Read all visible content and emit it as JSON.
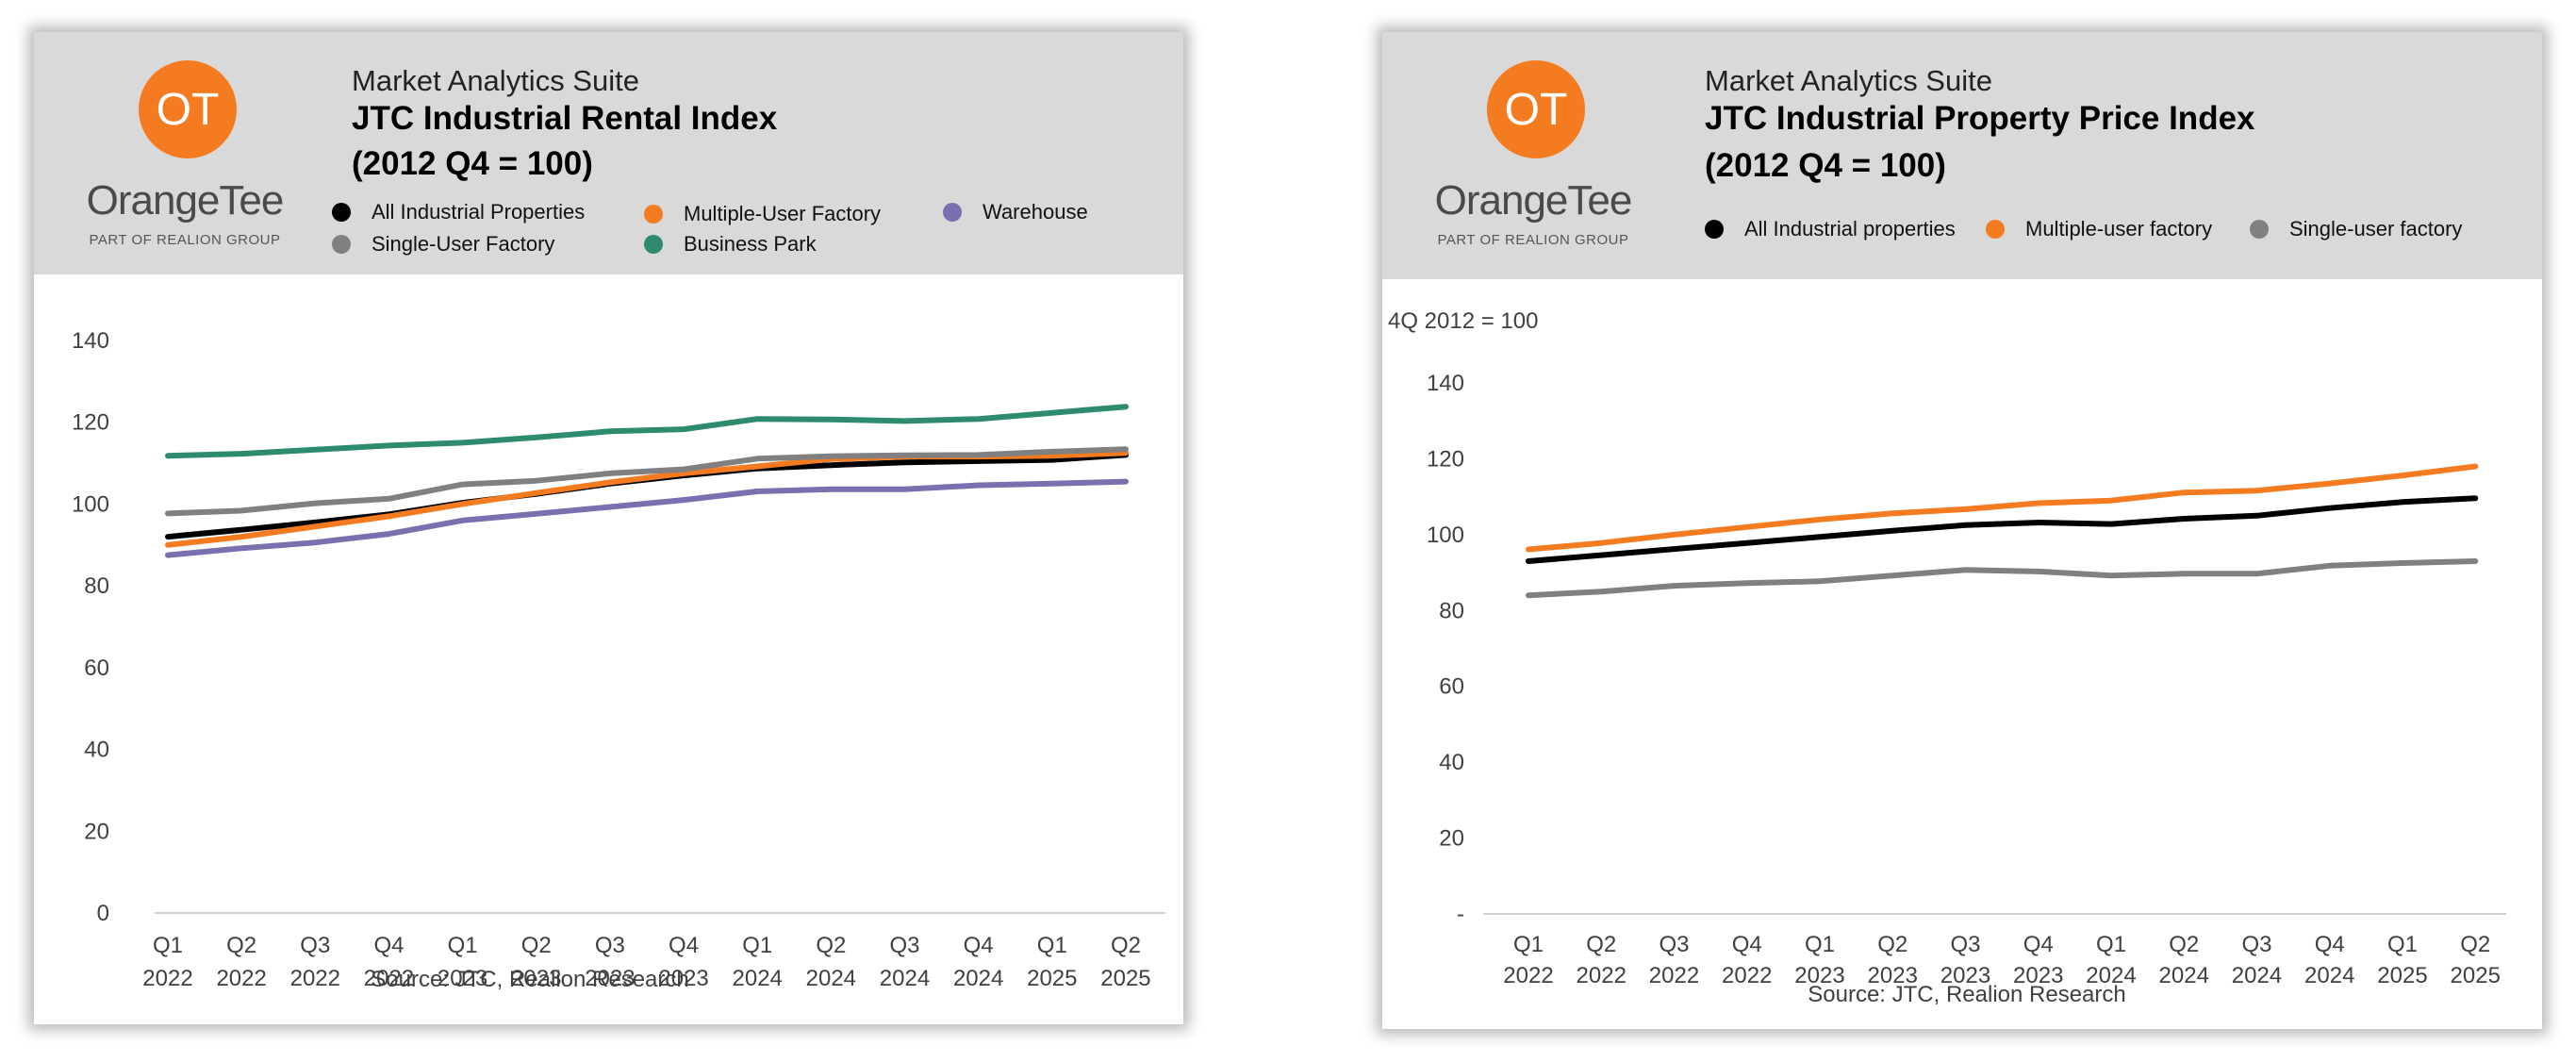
{
  "panels": [
    {
      "logo": {
        "monogram": "OT",
        "wordmark": "OrangeTee",
        "tagline": "PART OF REALION GROUP",
        "color": "#f47b20"
      },
      "suite": "Market Analytics Suite",
      "title_line1": "JTC Industrial Rental Index",
      "title_line2": "(2012 Q4 = 100)",
      "source": "Source: JTC, Realion Research"
    },
    {
      "logo": {
        "monogram": "OT",
        "wordmark": "OrangeTee",
        "tagline": "PART OF REALION GROUP",
        "color": "#f47b20"
      },
      "suite": "Market Analytics Suite",
      "title_line1": "JTC Industrial Property Price Index",
      "title_line2": "(2012 Q4 = 100)",
      "unit_note": "4Q 2012 = 100",
      "source": "Source: JTC, Realion Research"
    }
  ],
  "chart_data": [
    {
      "type": "line",
      "title": "JTC Industrial Rental Index (2012 Q4 = 100)",
      "categories": [
        [
          "Q1",
          "2022"
        ],
        [
          "Q2",
          "2022"
        ],
        [
          "Q3",
          "2022"
        ],
        [
          "Q4",
          "2022"
        ],
        [
          "Q1",
          "2023"
        ],
        [
          "Q2",
          "2023"
        ],
        [
          "Q3",
          "2023"
        ],
        [
          "Q4",
          "2023"
        ],
        [
          "Q1",
          "2024"
        ],
        [
          "Q2",
          "2024"
        ],
        [
          "Q3",
          "2024"
        ],
        [
          "Q4",
          "2024"
        ],
        [
          "Q1",
          "2025"
        ],
        [
          "Q2",
          "2025"
        ]
      ],
      "ylim": [
        0,
        140
      ],
      "yticks": [
        "0",
        "20",
        "40",
        "60",
        "80",
        "100",
        "120",
        "140"
      ],
      "legend_placement": "top",
      "grid": false,
      "series": [
        {
          "name": "All Industrial Properties",
          "color": "#000000",
          "values": [
            92,
            93.7,
            95.5,
            97.5,
            100.3,
            102.5,
            105,
            107,
            108.7,
            109.5,
            110.2,
            110.5,
            110.8,
            112
          ]
        },
        {
          "name": "Multiple-User Factory",
          "color": "#f47b20",
          "values": [
            90,
            92,
            94.5,
            97,
            100,
            102.7,
            105.3,
            107.5,
            109.2,
            111,
            111.6,
            111.6,
            111.8,
            112.5
          ]
        },
        {
          "name": "Warehouse",
          "color": "#7b6fb0",
          "values": [
            87.5,
            89.2,
            90.6,
            92.7,
            96,
            97.6,
            99.3,
            101,
            103.1,
            103.6,
            103.6,
            104.6,
            105,
            105.5
          ]
        },
        {
          "name": "Single-User Factory",
          "color": "#808080",
          "values": [
            97.7,
            98.4,
            100.2,
            101.3,
            104.8,
            105.7,
            107.5,
            108.5,
            111.1,
            111.7,
            111.9,
            112,
            112.8,
            113.4
          ]
        },
        {
          "name": "Business Park",
          "color": "#2e8b6f",
          "values": [
            111.8,
            112.3,
            113.3,
            114.3,
            115,
            116.3,
            117.8,
            118.3,
            120.8,
            120.7,
            120.3,
            120.8,
            122.3,
            123.8
          ]
        }
      ]
    },
    {
      "type": "line",
      "title": "JTC Industrial Property Price Index (2012 Q4 = 100)",
      "categories": [
        [
          "Q1",
          "2022"
        ],
        [
          "Q2",
          "2022"
        ],
        [
          "Q3",
          "2022"
        ],
        [
          "Q4",
          "2022"
        ],
        [
          "Q1",
          "2023"
        ],
        [
          "Q2",
          "2023"
        ],
        [
          "Q3",
          "2023"
        ],
        [
          "Q4",
          "2023"
        ],
        [
          "Q1",
          "2024"
        ],
        [
          "Q2",
          "2024"
        ],
        [
          "Q3",
          "2024"
        ],
        [
          "Q4",
          "2024"
        ],
        [
          "Q1",
          "2025"
        ],
        [
          "Q2",
          "2025"
        ]
      ],
      "ylim": [
        0,
        140
      ],
      "yticks": [
        "-",
        "20",
        "40",
        "60",
        "80",
        "100",
        "120",
        "140"
      ],
      "legend_placement": "top",
      "grid": false,
      "series": [
        {
          "name": "All Industrial properties",
          "color": "#000000",
          "values": [
            93,
            94.6,
            96.2,
            97.8,
            99.4,
            101,
            102.5,
            103.2,
            102.8,
            104.2,
            105,
            107,
            108.6,
            109.6
          ]
        },
        {
          "name": "Multiple-user factory",
          "color": "#f47b20",
          "values": [
            96.1,
            97.8,
            100,
            102,
            104,
            105.6,
            106.7,
            108.3,
            109,
            111.1,
            111.6,
            113.5,
            115.6,
            118
          ]
        },
        {
          "name": "Single-user factory",
          "color": "#808080",
          "values": [
            84,
            85,
            86.5,
            87.2,
            87.7,
            89.2,
            90.7,
            90.3,
            89.2,
            89.7,
            89.7,
            91.8,
            92.5,
            93
          ]
        }
      ]
    }
  ]
}
